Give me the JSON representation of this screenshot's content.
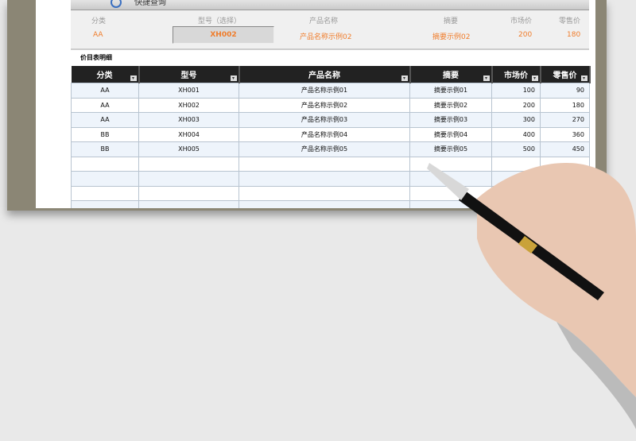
{
  "quick_query": {
    "title": "快捷查询",
    "icon": "search-icon",
    "labels": [
      "分类",
      "型号（选择）",
      "产品名称",
      "摘要",
      "市场价",
      "零售价"
    ],
    "values": {
      "category": "AA",
      "model": "XH002",
      "product": "产品名称示例02",
      "summary": "摘要示例02",
      "market": "200",
      "retail": "180"
    }
  },
  "table": {
    "title": "价目表明细",
    "headers": [
      "分类",
      "型号",
      "产品名称",
      "摘要",
      "市场价",
      "零售价"
    ],
    "rows": [
      [
        "AA",
        "XH001",
        "产品名称示例01",
        "摘要示例01",
        "100",
        "90"
      ],
      [
        "AA",
        "XH002",
        "产品名称示例02",
        "摘要示例02",
        "200",
        "180"
      ],
      [
        "AA",
        "XH003",
        "产品名称示例03",
        "摘要示例03",
        "300",
        "270"
      ],
      [
        "BB",
        "XH004",
        "产品名称示例04",
        "摘要示例04",
        "400",
        "360"
      ],
      [
        "BB",
        "XH005",
        "产品名称示例05",
        "摘要示例05",
        "500",
        "450"
      ],
      [
        "",
        "",
        "",
        "",
        "",
        ""
      ],
      [
        "",
        "",
        "",
        "",
        "",
        ""
      ],
      [
        "",
        "",
        "",
        "",
        "",
        ""
      ],
      [
        "",
        "",
        "",
        "",
        "",
        ""
      ]
    ]
  },
  "colors": {
    "accent": "#f07c2a",
    "header_bg": "#222222"
  }
}
